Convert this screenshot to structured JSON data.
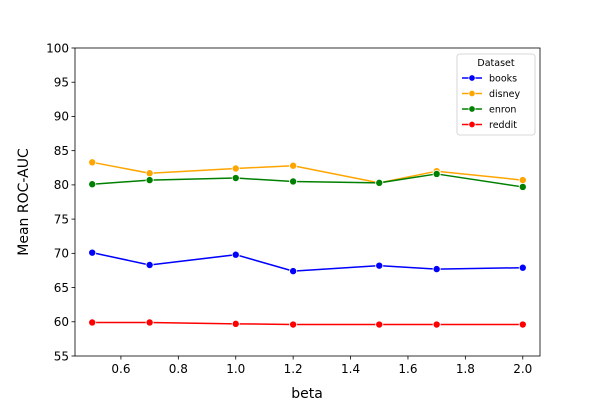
{
  "chart_data": {
    "type": "line",
    "title": "",
    "xlabel": "beta",
    "ylabel": "Mean ROC-AUC",
    "xlim": [
      0.44,
      2.06
    ],
    "ylim": [
      55,
      100
    ],
    "xticks": [
      0.6,
      0.8,
      1.0,
      1.2,
      1.4,
      1.6,
      1.8,
      2.0
    ],
    "xtick_labels": [
      "0.6",
      "0.8",
      "1.0",
      "1.2",
      "1.4",
      "1.6",
      "1.8",
      "2.0"
    ],
    "yticks": [
      55,
      60,
      65,
      70,
      75,
      80,
      85,
      90,
      95,
      100
    ],
    "ytick_labels": [
      "55",
      "60",
      "65",
      "70",
      "75",
      "80",
      "85",
      "90",
      "95",
      "100"
    ],
    "x": [
      0.5,
      0.7,
      1.0,
      1.2,
      1.5,
      1.7,
      2.0
    ],
    "grid": false,
    "legend": {
      "title": "Dataset",
      "placement": "top-right"
    },
    "series": [
      {
        "name": "books",
        "color": "#0000ff",
        "values": [
          70.1,
          68.3,
          69.8,
          67.4,
          68.2,
          67.7,
          67.9
        ]
      },
      {
        "name": "disney",
        "color": "#ffa500",
        "values": [
          83.3,
          81.7,
          82.4,
          82.8,
          80.3,
          82.0,
          80.7
        ]
      },
      {
        "name": "enron",
        "color": "#008000",
        "values": [
          80.1,
          80.7,
          81.0,
          80.5,
          80.3,
          81.6,
          79.7
        ]
      },
      {
        "name": "reddit",
        "color": "#ff0000",
        "values": [
          59.9,
          59.9,
          59.7,
          59.6,
          59.6,
          59.6,
          59.6
        ]
      }
    ]
  }
}
